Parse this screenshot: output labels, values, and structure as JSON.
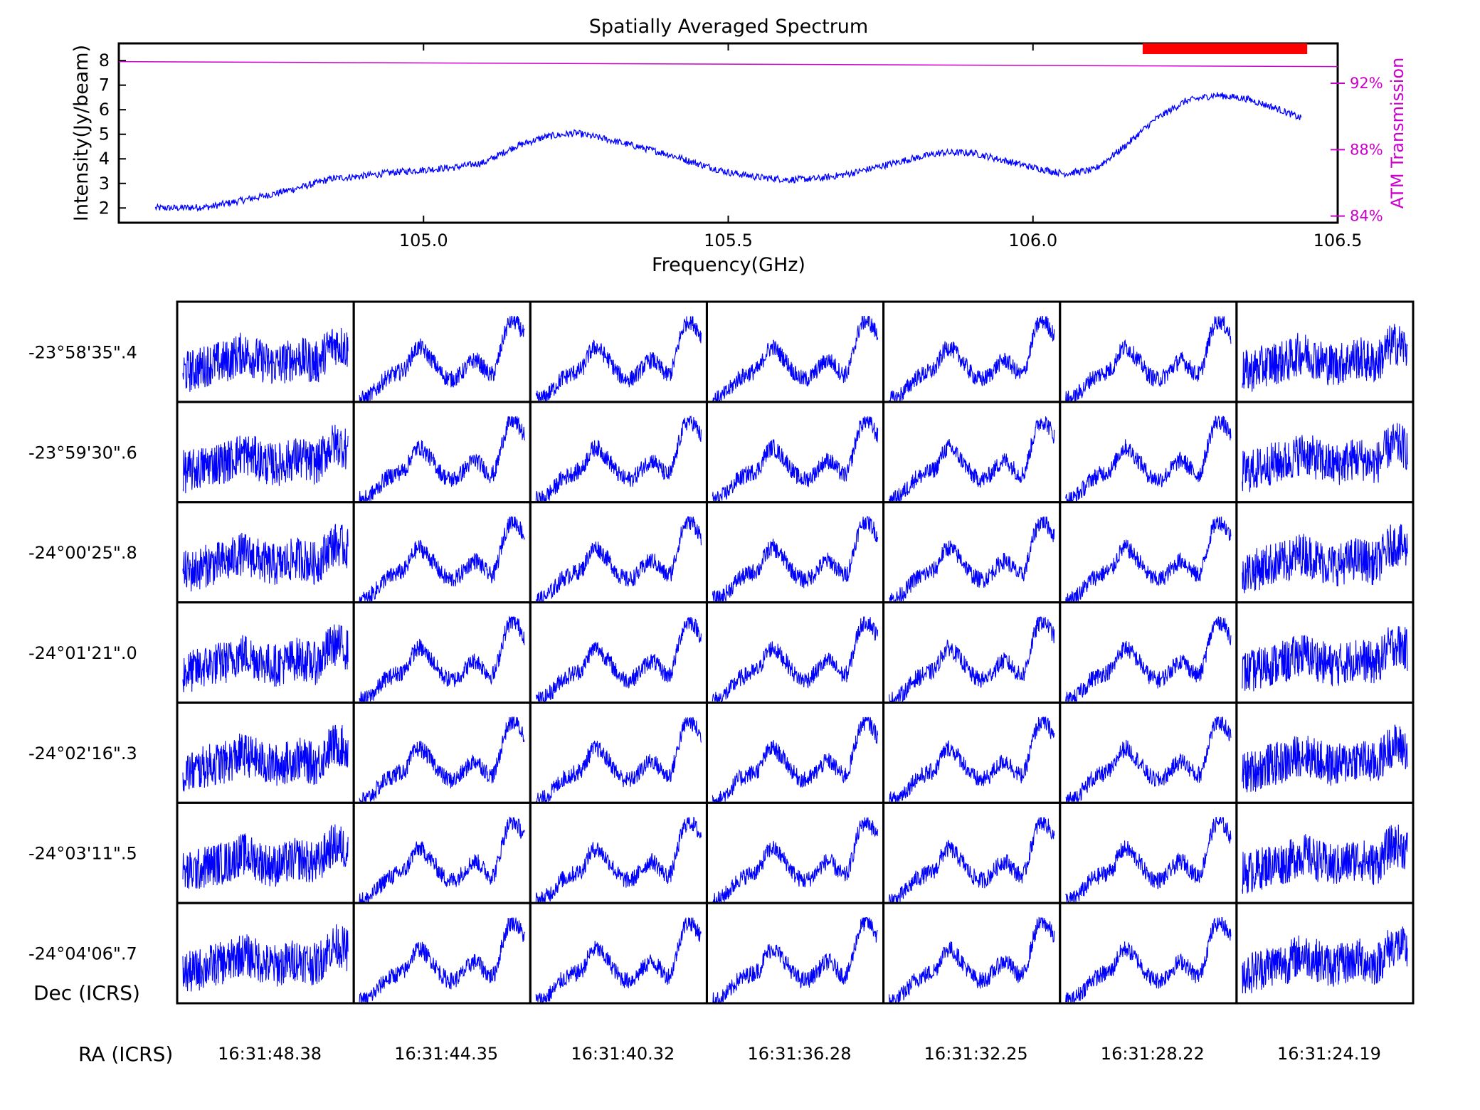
{
  "chart_data": [
    {
      "type": "line",
      "title": "Spatially Averaged Spectrum",
      "xlabel": "Frequency(GHz)",
      "ylabel": "Intensity(Jy/beam)",
      "y2label": "ATM Transmission",
      "xlim": [
        104.5,
        106.5
      ],
      "ylim": [
        1.4,
        8.7
      ],
      "y2lim": [
        83.6,
        94.4
      ],
      "xticks": [
        105.0,
        105.5,
        106.0,
        106.5
      ],
      "xtick_labels": [
        "105.0",
        "105.5",
        "106.0",
        "106.5"
      ],
      "yticks": [
        2,
        3,
        4,
        5,
        6,
        7,
        8
      ],
      "ytick_labels": [
        "2",
        "3",
        "4",
        "5",
        "6",
        "7",
        "8"
      ],
      "y2ticks": [
        84,
        88,
        92
      ],
      "y2tick_labels": [
        "84%",
        "88%",
        "92%"
      ],
      "grid": false,
      "series": [
        {
          "name": "",
          "color": "#0000ff",
          "x": [
            104.56,
            104.6,
            104.65,
            104.7,
            104.75,
            104.8,
            104.85,
            104.9,
            104.95,
            105.0,
            105.05,
            105.1,
            105.15,
            105.2,
            105.25,
            105.3,
            105.35,
            105.4,
            105.45,
            105.5,
            105.55,
            105.6,
            105.65,
            105.7,
            105.75,
            105.8,
            105.85,
            105.9,
            105.95,
            106.0,
            106.05,
            106.1,
            106.15,
            106.2,
            106.25,
            106.3,
            106.35,
            106.4,
            106.44
          ],
          "y": [
            2.0,
            2.0,
            2.05,
            2.3,
            2.55,
            2.85,
            3.2,
            3.3,
            3.45,
            3.55,
            3.65,
            3.85,
            4.5,
            4.9,
            5.05,
            4.8,
            4.5,
            4.2,
            3.8,
            3.45,
            3.25,
            3.15,
            3.2,
            3.4,
            3.7,
            4.0,
            4.25,
            4.25,
            3.95,
            3.65,
            3.4,
            3.55,
            4.5,
            5.6,
            6.35,
            6.6,
            6.45,
            6.05,
            5.65
          ]
        },
        {
          "name": "",
          "color": "#cc00cc",
          "x": [
            104.5,
            106.5
          ],
          "y": [
            93.3,
            93.0
          ],
          "axis": "y2"
        }
      ],
      "annotations": [
        {
          "type": "highlight-band",
          "color": "#ff0000",
          "x_range": [
            106.18,
            106.45
          ]
        }
      ]
    },
    {
      "type": "line",
      "description_grid": "7x7 spectra",
      "xlabel": "RA (ICRS)",
      "ylabel": "Dec (ICRS)",
      "x_labels": [
        "16:31:48.38",
        "16:31:44.35",
        "16:31:40.32",
        "16:31:36.28",
        "16:31:32.25",
        "16:31:28.22",
        "16:31:24.19"
      ],
      "y_labels": [
        "-23°58'35\".4",
        "-23°59'30\".6",
        "-24°00'25\".8",
        "-24°01'21\".0",
        "-24°02'16\".3",
        "-24°03'11\".5",
        "-24°04'06\".7"
      ],
      "line_color": "#0000ff"
    }
  ]
}
